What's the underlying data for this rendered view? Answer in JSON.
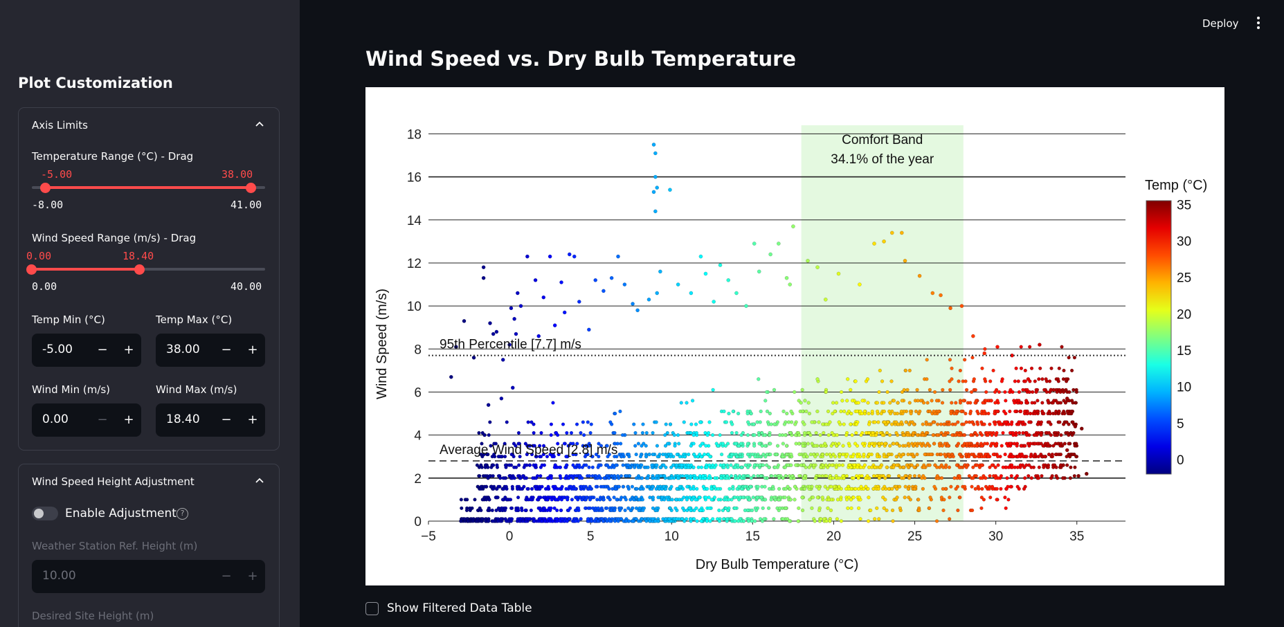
{
  "topbar": {
    "deploy_label": "Deploy",
    "menu_icon": "kebab-menu-icon"
  },
  "sidebar": {
    "title": "Plot Customization",
    "axis_limits": {
      "header": "Axis Limits",
      "temp_slider": {
        "label": "Temperature Range (°C) - Drag",
        "low": "-5.00",
        "high": "38.00",
        "min": "-8.00",
        "max": "41.00",
        "low_val": -5,
        "high_val": 38,
        "range": [
          -8,
          41
        ]
      },
      "wind_slider": {
        "label": "Wind Speed Range (m/s) - Drag",
        "low": "0.00",
        "high": "18.40",
        "min": "0.00",
        "max": "40.00",
        "low_val": 0,
        "high_val": 18.4,
        "range": [
          0,
          40
        ]
      },
      "temp_min": {
        "label": "Temp Min (°C)",
        "value": "-5.00"
      },
      "temp_max": {
        "label": "Temp Max (°C)",
        "value": "38.00"
      },
      "wind_min": {
        "label": "Wind Min (m/s)",
        "value": "0.00"
      },
      "wind_max": {
        "label": "Wind Max (m/s)",
        "value": "18.40"
      }
    },
    "height_adjust": {
      "header": "Wind Speed Height Adjustment",
      "toggle_label": "Enable Adjustment",
      "toggle_on": false,
      "ref_height": {
        "label": "Weather Station Ref. Height (m)",
        "value": "10.00"
      },
      "site_height_label": "Desired Site Height (m)"
    }
  },
  "main": {
    "title": "Wind Speed vs. Dry Bulb Temperature",
    "show_table_label": "Show Filtered Data Table"
  },
  "chart_data": {
    "type": "scatter",
    "xlabel": "Dry Bulb Temperature (°C)",
    "ylabel": "Wind Speed (m/s)",
    "xlim": [
      -5,
      38
    ],
    "ylim": [
      0,
      18.4
    ],
    "xticks": [
      "−5",
      "0",
      "5",
      "10",
      "15",
      "20",
      "25",
      "30",
      "35"
    ],
    "yticks": [
      "0",
      "2",
      "4",
      "6",
      "8",
      "10",
      "12",
      "14",
      "16",
      "18"
    ],
    "grid": "horizontal",
    "colorbar": {
      "title": "Temp (°C)",
      "ticks": [
        "0",
        "5",
        "10",
        "15",
        "20",
        "25",
        "30",
        "35"
      ],
      "range": [
        -2,
        35.5
      ],
      "colormap": "jet"
    },
    "comfort_band": {
      "x_range": [
        18,
        28
      ],
      "label": "Comfort Band",
      "sublabel": "34.1% of the year",
      "color": "#e4f9e0"
    },
    "lines": [
      {
        "label": "95th Percentile [7.7] m/s",
        "y": 7.7,
        "style": "dotted"
      },
      {
        "label": "Average Wind Speed [2.8] m/s",
        "y": 2.8,
        "style": "dashed"
      }
    ],
    "points": [
      [
        -2.8,
        9.3
      ],
      [
        -3.3,
        8.1
      ],
      [
        -3.6,
        6.7
      ],
      [
        -2.2,
        7.6
      ],
      [
        -1.6,
        11.8
      ],
      [
        -1.6,
        11.3
      ],
      [
        -1.2,
        9.2
      ],
      [
        -1.0,
        8.7
      ],
      [
        -0.8,
        8.8
      ],
      [
        -0.4,
        7.5
      ],
      [
        0.1,
        9.9
      ],
      [
        0.3,
        9.4
      ],
      [
        0.5,
        10.6
      ],
      [
        0.7,
        10.0
      ],
      [
        0.4,
        8.7
      ],
      [
        0.0,
        8.2
      ],
      [
        0.2,
        6.2
      ],
      [
        -0.5,
        5.7
      ],
      [
        -1.3,
        5.4
      ],
      [
        1.1,
        12.3
      ],
      [
        1.6,
        11.2
      ],
      [
        2.1,
        10.4
      ],
      [
        2.5,
        12.3
      ],
      [
        3.2,
        11.1
      ],
      [
        3.7,
        12.4
      ],
      [
        4.0,
        12.3
      ],
      [
        3.4,
        9.7
      ],
      [
        2.8,
        9.1
      ],
      [
        1.8,
        8.6
      ],
      [
        4.3,
        10.2
      ],
      [
        4.9,
        8.9
      ],
      [
        5.3,
        11.2
      ],
      [
        5.8,
        10.7
      ],
      [
        6.3,
        11.3
      ],
      [
        6.7,
        12.3
      ],
      [
        7.1,
        11.0
      ],
      [
        7.6,
        10.1
      ],
      [
        7.9,
        9.8
      ],
      [
        8.6,
        10.3
      ],
      [
        9.1,
        10.6
      ],
      [
        9.3,
        11.6
      ],
      [
        8.9,
        17.5
      ],
      [
        9.0,
        17.1
      ],
      [
        9.0,
        16.0
      ],
      [
        9.1,
        15.5
      ],
      [
        8.9,
        15.3
      ],
      [
        9.9,
        15.4
      ],
      [
        9.0,
        14.4
      ],
      [
        10.4,
        11.0
      ],
      [
        11.2,
        10.6
      ],
      [
        11.8,
        12.3
      ],
      [
        12.1,
        11.5
      ],
      [
        12.6,
        10.2
      ],
      [
        13.0,
        11.9
      ],
      [
        13.5,
        11.2
      ],
      [
        14.0,
        10.6
      ],
      [
        14.6,
        10.0
      ],
      [
        15.1,
        12.9
      ],
      [
        15.4,
        11.6
      ],
      [
        16.1,
        12.4
      ],
      [
        16.6,
        12.9
      ],
      [
        17.1,
        11.3
      ],
      [
        17.5,
        13.7
      ],
      [
        17.3,
        11.0
      ],
      [
        18.4,
        12.1
      ],
      [
        19.0,
        11.8
      ],
      [
        19.5,
        10.3
      ],
      [
        20.3,
        11.5
      ],
      [
        21.6,
        11.0
      ],
      [
        22.5,
        12.9
      ],
      [
        23.1,
        13.0
      ],
      [
        23.6,
        13.4
      ],
      [
        24.2,
        13.4
      ],
      [
        24.4,
        12.1
      ],
      [
        25.3,
        11.4
      ],
      [
        26.1,
        10.6
      ],
      [
        26.6,
        10.5
      ],
      [
        27.2,
        9.9
      ],
      [
        27.9,
        10.0
      ],
      [
        28.6,
        8.6
      ],
      [
        29.3,
        7.8
      ],
      [
        30.1,
        8.1
      ],
      [
        31.0,
        7.7
      ],
      [
        32.0,
        6.6
      ],
      [
        32.7,
        8.2
      ],
      [
        33.4,
        6.1
      ],
      [
        33.9,
        5.1
      ],
      [
        34.4,
        5.7
      ],
      [
        34.9,
        4.4
      ],
      [
        35.3,
        4.3
      ],
      [
        35.6,
        2.2
      ],
      [
        35.1,
        2.1
      ],
      [
        34.4,
        3.3
      ],
      [
        33.2,
        3.6
      ],
      [
        31.6,
        3.1
      ]
    ]
  }
}
